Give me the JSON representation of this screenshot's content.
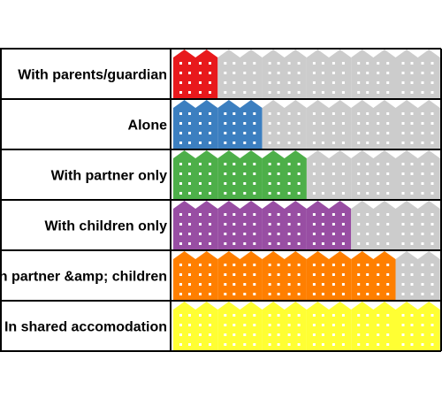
{
  "chart_data": {
    "type": "pictogram",
    "units_per_row": 6,
    "unit_icon": "building-icon",
    "empty_color": "#cccccc",
    "rows": [
      {
        "label": "With parents/guardian",
        "filled": 1,
        "color": "#e8191c"
      },
      {
        "label": "Alone",
        "filled": 2,
        "color": "#3c7fc0"
      },
      {
        "label": "With partner only",
        "filled": 3,
        "color": "#4daf49"
      },
      {
        "label": "With children only",
        "filled": 4,
        "color": "#984ea3"
      },
      {
        "label": "With partner &amp; children",
        "filled": 5,
        "color": "#ff7f00"
      },
      {
        "label": "In shared accomodation",
        "filled": 6,
        "color": "#ffff33"
      }
    ]
  }
}
